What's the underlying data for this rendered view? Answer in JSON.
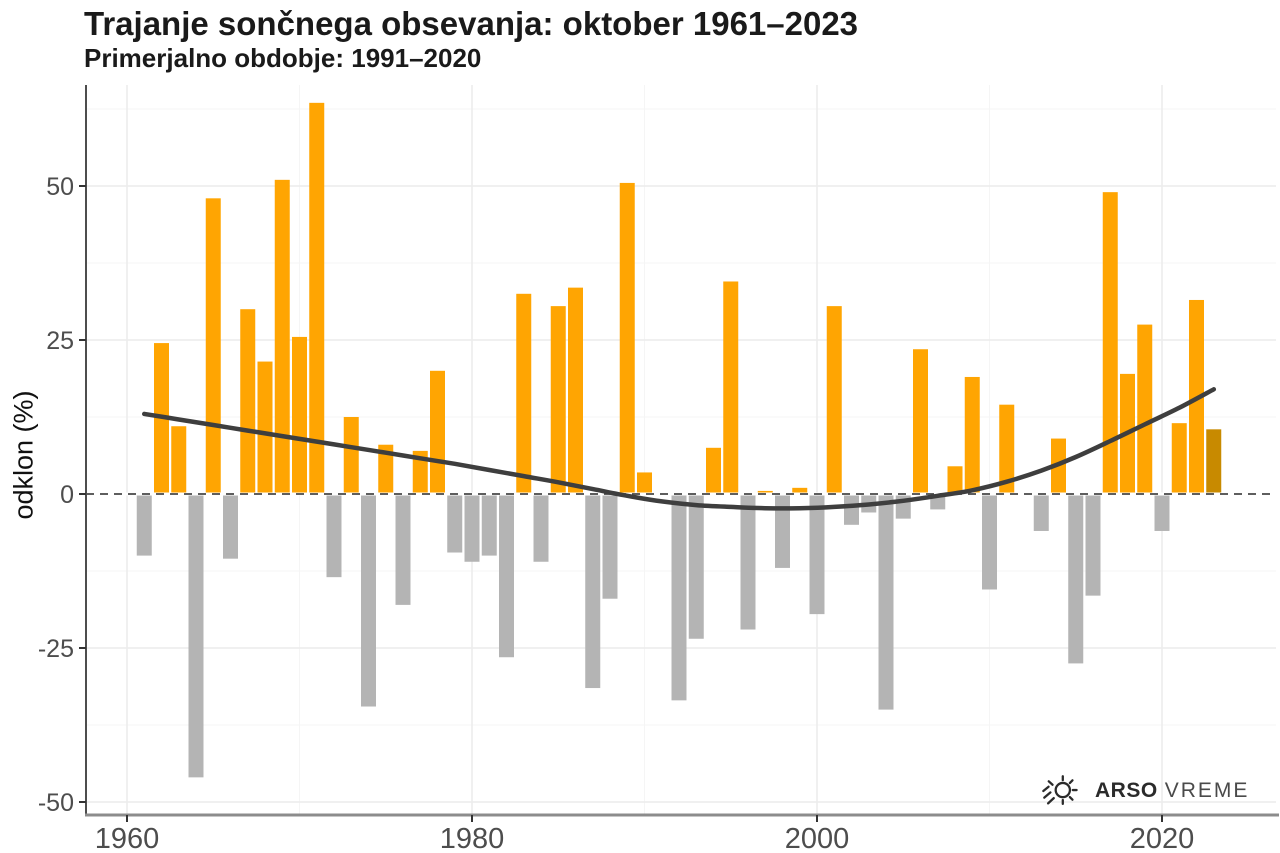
{
  "header": {
    "title": "Trajanje sončnega obsevanja: oktober 1961–2023",
    "subtitle": "Primerjalno obdobje: 1991–2020"
  },
  "y_axis_title": "odklon (%)",
  "logo": {
    "icon": "sun-rays-icon",
    "bold_text": "ARSO",
    "regular_text": "VREME"
  },
  "chart_data": {
    "type": "bar",
    "title": "Trajanje sončnega obsevanja: oktober 1961–2023",
    "subtitle": "Primerjalno obdobje: 1991–2020",
    "xlabel": "",
    "ylabel": "odklon (%)",
    "x": [
      1961,
      1962,
      1963,
      1964,
      1965,
      1966,
      1967,
      1968,
      1969,
      1970,
      1971,
      1972,
      1973,
      1974,
      1975,
      1976,
      1977,
      1978,
      1979,
      1980,
      1981,
      1982,
      1983,
      1984,
      1985,
      1986,
      1987,
      1988,
      1989,
      1990,
      1991,
      1992,
      1993,
      1994,
      1995,
      1996,
      1997,
      1998,
      1999,
      2000,
      2001,
      2002,
      2003,
      2004,
      2005,
      2006,
      2007,
      2008,
      2009,
      2010,
      2011,
      2012,
      2013,
      2014,
      2015,
      2016,
      2017,
      2018,
      2019,
      2020,
      2021,
      2022,
      2023
    ],
    "values": [
      -10,
      24.5,
      11,
      -46,
      48,
      -10.5,
      30,
      21.5,
      51,
      25.5,
      63.5,
      -13.5,
      12.5,
      -34.5,
      8,
      -18,
      7,
      20,
      -9.5,
      -11,
      -10,
      -26.5,
      32.5,
      -11,
      30.5,
      33.5,
      -31.5,
      -17,
      50.5,
      3.5,
      0,
      -33.5,
      -23.5,
      7.5,
      34.5,
      -22,
      0.5,
      -12,
      1,
      -19.5,
      30.5,
      -5,
      -3,
      -35,
      -4,
      23.5,
      -2.5,
      4.5,
      19,
      -15.5,
      14.5,
      0,
      -6,
      9,
      -27.5,
      -16.5,
      49,
      19.5,
      27.5,
      -6,
      11.5,
      31.5,
      10.5
    ],
    "latest_year": 2023,
    "yticks": [
      -50,
      -25,
      0,
      25,
      50
    ],
    "yticks_minor": [
      -37.5,
      -12.5,
      12.5,
      37.5,
      62.5
    ],
    "xticks": [
      1960,
      1980,
      2000,
      2020
    ],
    "xticks_minor": [
      1970,
      1990,
      2010
    ],
    "ylim": [
      -52.1,
      66.4
    ],
    "xlim": [
      1957.6,
      2026.6
    ],
    "grid": true,
    "legend": false,
    "zero_line": {
      "style": "dashed",
      "color": "#474747"
    },
    "trend_line": {
      "color": "#3e3e3e",
      "x": [
        1961,
        1963,
        1965,
        1967,
        1969,
        1971,
        1973,
        1975,
        1977,
        1979,
        1981,
        1983,
        1985,
        1987,
        1989,
        1991,
        1993,
        1995,
        1997,
        1999,
        2001,
        2003,
        2005,
        2007,
        2009,
        2011,
        2013,
        2015,
        2017,
        2019,
        2021,
        2023
      ],
      "y": [
        13.0,
        12.1,
        11.2,
        10.3,
        9.4,
        8.5,
        7.6,
        6.7,
        5.8,
        4.9,
        3.9,
        2.9,
        1.9,
        0.8,
        -0.3,
        -1.2,
        -1.8,
        -2.1,
        -2.3,
        -2.3,
        -2.1,
        -1.7,
        -1.1,
        -0.3,
        0.6,
        2.0,
        3.8,
        6.0,
        8.6,
        11.3,
        14.0,
        17.0
      ]
    },
    "colors": {
      "positive": "#FFA502",
      "negative": "#B4B4B4",
      "latest_year": "#C88A00",
      "trend": "#3e3e3e",
      "grid_major": "#ececec",
      "grid_minor": "#f5f5f5",
      "axis_left": "#4d4d4d",
      "axis_bottom": "#8c8c8c",
      "tick_label": "#4d4d4d"
    }
  }
}
